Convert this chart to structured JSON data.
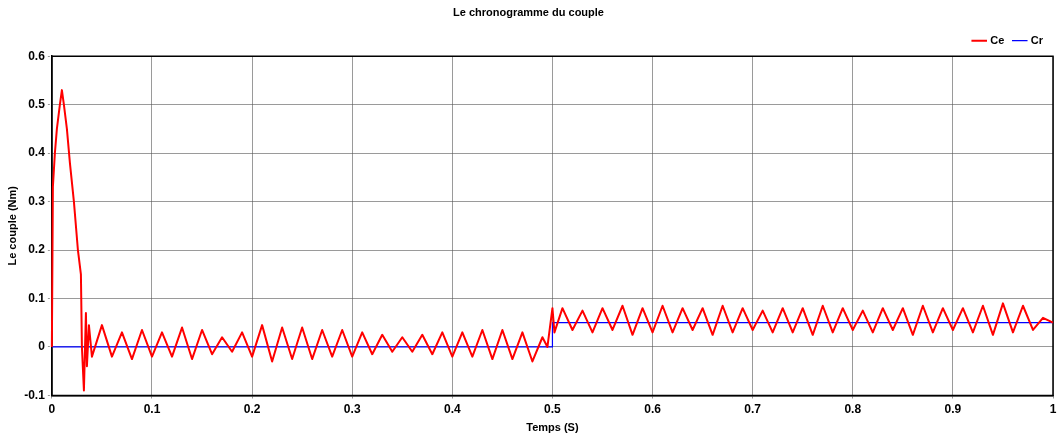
{
  "chart_data": {
    "type": "line",
    "title": "Le chronogramme du couple",
    "xlabel": "Temps (S)",
    "ylabel": "Le couple (Nm)",
    "series": [
      {
        "name": "Ce",
        "color": "#ff0000",
        "x": [
          0,
          0.001,
          0.003,
          0.005,
          0.008,
          0.01,
          0.012,
          0.015,
          0.018,
          0.022,
          0.026,
          0.029,
          0.03,
          0.032,
          0.034,
          0.035,
          0.037,
          0.04,
          0.05,
          0.06,
          0.07,
          0.08,
          0.09,
          0.1,
          0.11,
          0.12,
          0.13,
          0.14,
          0.15,
          0.16,
          0.17,
          0.18,
          0.19,
          0.2,
          0.21,
          0.22,
          0.23,
          0.24,
          0.25,
          0.26,
          0.27,
          0.28,
          0.29,
          0.3,
          0.31,
          0.32,
          0.33,
          0.34,
          0.35,
          0.36,
          0.37,
          0.38,
          0.39,
          0.4,
          0.41,
          0.42,
          0.43,
          0.44,
          0.45,
          0.46,
          0.47,
          0.48,
          0.49,
          0.495,
          0.5,
          0.502,
          0.51,
          0.52,
          0.53,
          0.54,
          0.55,
          0.56,
          0.57,
          0.58,
          0.59,
          0.6,
          0.61,
          0.62,
          0.63,
          0.64,
          0.65,
          0.66,
          0.67,
          0.68,
          0.69,
          0.7,
          0.71,
          0.72,
          0.73,
          0.74,
          0.75,
          0.76,
          0.77,
          0.78,
          0.79,
          0.8,
          0.81,
          0.82,
          0.83,
          0.84,
          0.85,
          0.86,
          0.87,
          0.88,
          0.89,
          0.9,
          0.91,
          0.92,
          0.93,
          0.94,
          0.95,
          0.96,
          0.97,
          0.98,
          0.99,
          1
        ],
        "values": [
          0,
          0.33,
          0.4,
          0.45,
          0.5,
          0.53,
          0.5,
          0.45,
          0.38,
          0.3,
          0.2,
          0.15,
          0,
          -0.09,
          0.07,
          -0.04,
          0.045,
          -0.02,
          0.045,
          -0.02,
          0.03,
          -0.025,
          0.035,
          -0.02,
          0.03,
          -0.02,
          0.04,
          -0.025,
          0.035,
          -0.015,
          0.02,
          -0.01,
          0.03,
          -0.02,
          0.045,
          -0.03,
          0.04,
          -0.025,
          0.04,
          -0.025,
          0.035,
          -0.02,
          0.035,
          -0.02,
          0.03,
          -0.015,
          0.025,
          -0.01,
          0.02,
          -0.01,
          0.025,
          -0.015,
          0.03,
          -0.02,
          0.03,
          -0.02,
          0.035,
          -0.025,
          0.035,
          -0.025,
          0.03,
          -0.03,
          0.02,
          0,
          0.08,
          0.03,
          0.08,
          0.035,
          0.075,
          0.03,
          0.08,
          0.035,
          0.085,
          0.025,
          0.08,
          0.03,
          0.085,
          0.03,
          0.08,
          0.035,
          0.08,
          0.025,
          0.085,
          0.03,
          0.08,
          0.035,
          0.075,
          0.03,
          0.08,
          0.03,
          0.08,
          0.025,
          0.085,
          0.03,
          0.08,
          0.035,
          0.075,
          0.03,
          0.08,
          0.035,
          0.08,
          0.025,
          0.085,
          0.03,
          0.08,
          0.035,
          0.08,
          0.03,
          0.085,
          0.025,
          0.09,
          0.03,
          0.085,
          0.035,
          0.06,
          0.05
        ]
      },
      {
        "name": "Cr",
        "color": "#0000ff",
        "x": [
          0,
          0.5,
          0.5,
          1
        ],
        "values": [
          0,
          0,
          0.05,
          0.05
        ]
      }
    ],
    "xlim": [
      0,
      1
    ],
    "xticks": [
      0,
      0.1,
      0.2,
      0.3,
      0.4,
      0.5,
      0.6,
      0.7,
      0.8,
      0.9,
      1
    ],
    "ylim": [
      -0.1,
      0.6
    ],
    "yticks": [
      -0.1,
      0,
      0.1,
      0.2,
      0.3,
      0.4,
      0.5,
      0.6
    ],
    "grid": true,
    "legend": "top right",
    "marker": "none",
    "line_style": "solid"
  }
}
